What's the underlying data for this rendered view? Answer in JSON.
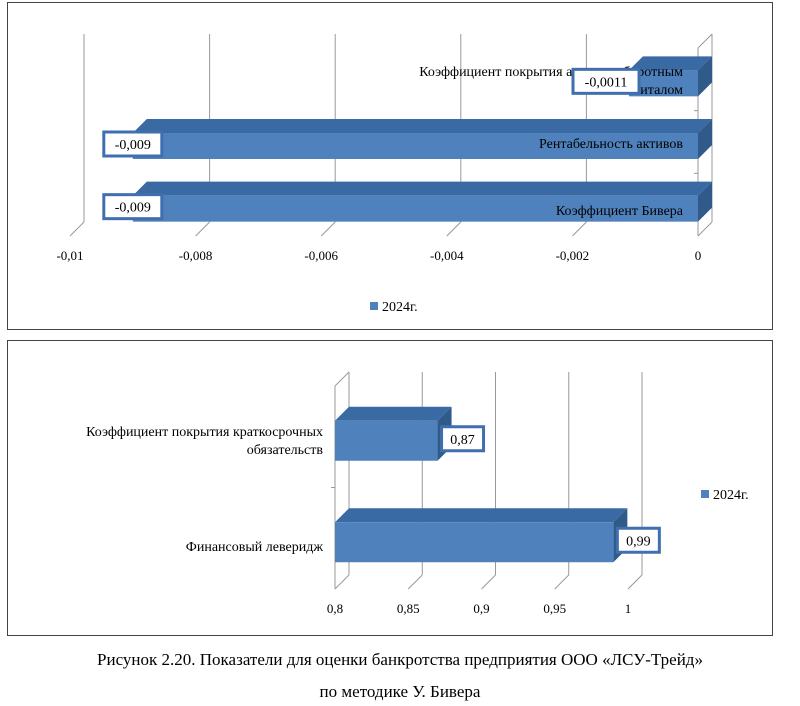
{
  "charts_meta": {
    "bar_color": "#4f81bd",
    "bar_top_color": "#3a6aa3",
    "bar_side_color": "#2f5a8a",
    "label_border_color": "#3f6faf",
    "grid_color": "#999999"
  },
  "chart_data": [
    {
      "type": "bar",
      "orientation": "horizontal",
      "categories": [
        "Коэффициент покрытия активов оборотным капиталом",
        "Рентабельность активов",
        "Коэффициент Бивера"
      ],
      "category_lines": [
        [
          "Коэффициент покрытия активов оборотным",
          "капиталом"
        ],
        [
          "Рентабельность активов"
        ],
        [
          "Коэффициент Бивера"
        ]
      ],
      "series": [
        {
          "name": "2024г.",
          "values": [
            -0.0011,
            -0.009,
            -0.009
          ]
        }
      ],
      "data_labels": [
        "-0,0011",
        "-0,009",
        "-0,009"
      ],
      "xlim": [
        -0.01,
        0
      ],
      "ticks": [
        -0.01,
        -0.008,
        -0.006,
        -0.004,
        -0.002,
        0
      ],
      "tick_labels": [
        "-0,01",
        "-0,008",
        "-0,006",
        "-0,004",
        "-0,002",
        "0"
      ],
      "legend": "2024г.",
      "legend_position": "bottom",
      "grid": true
    },
    {
      "type": "bar",
      "orientation": "horizontal",
      "categories": [
        "Коэффициент покрытия краткосрочных обязательств",
        "Финансовый леверидж"
      ],
      "category_lines": [
        [
          "Коэффициент покрытия краткосрочных",
          "обязательств"
        ],
        [
          "Финансовый леверидж"
        ]
      ],
      "series": [
        {
          "name": "2024г.",
          "values": [
            0.87,
            0.99
          ]
        }
      ],
      "data_labels": [
        "0,87",
        "0,99"
      ],
      "xlim": [
        0.8,
        1
      ],
      "ticks": [
        0.8,
        0.85,
        0.9,
        0.95,
        1
      ],
      "tick_labels": [
        "0,8",
        "0,85",
        "0,9",
        "0,95",
        "1"
      ],
      "legend": "2024г.",
      "legend_position": "right",
      "grid": true
    }
  ],
  "caption": {
    "line1": "Рисунок 2.20. Показатели для оценки банкротства предприятия ООО «ЛСУ-Трейд»",
    "line2": "по методике У. Бивера"
  }
}
